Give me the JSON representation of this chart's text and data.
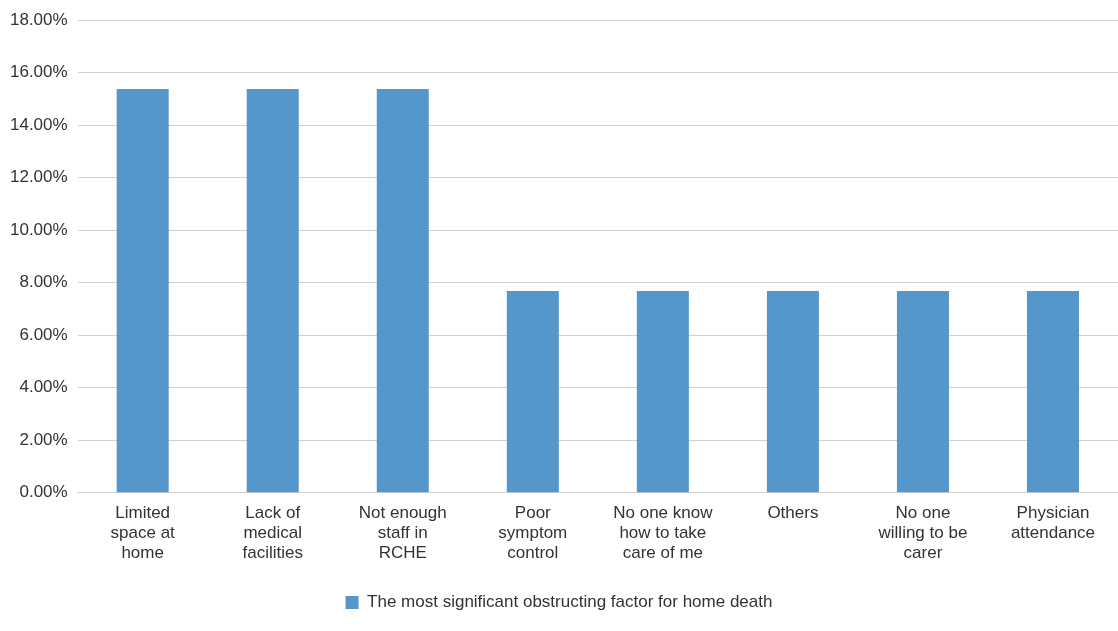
{
  "chart_data": {
    "type": "bar",
    "categories": [
      "Limited space at home",
      "Lack of medical facilities",
      "Not enough staff in RCHE",
      "Poor symptom control",
      "No one know how to take care of me",
      "Others",
      "No one willing to be carer",
      "Physician attendance"
    ],
    "series": [
      {
        "name": "The most significant obstructing factor for home death",
        "color": "#5596cb",
        "values": [
          15.38,
          15.38,
          15.38,
          7.69,
          7.69,
          7.69,
          7.69,
          7.69
        ]
      }
    ],
    "ylim": [
      0,
      18
    ],
    "yticks": [
      {
        "value": 0,
        "label": "0.00%"
      },
      {
        "value": 2,
        "label": "2.00%"
      },
      {
        "value": 4,
        "label": "4.00%"
      },
      {
        "value": 6,
        "label": "6.00%"
      },
      {
        "value": 8,
        "label": "8.00%"
      },
      {
        "value": 10,
        "label": "10.00%"
      },
      {
        "value": 12,
        "label": "12.00%"
      },
      {
        "value": 14,
        "label": "14.00%"
      },
      {
        "value": 16,
        "label": "16.00%"
      },
      {
        "value": 18,
        "label": "18.00%"
      }
    ],
    "grid": "y",
    "legend": "bottom"
  }
}
